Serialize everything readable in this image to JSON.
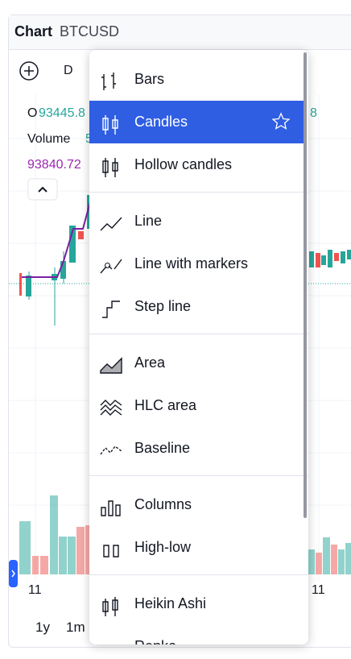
{
  "header": {
    "title": "Chart",
    "symbol": "BTCUSD"
  },
  "toolbar": {
    "interval": "D"
  },
  "legend": {
    "open_label": "O",
    "open_value": "93445.8",
    "right_value": "8",
    "volume_label": "Volume",
    "volume_value": "5",
    "price": "93840.72"
  },
  "axis": {
    "dates": [
      "11",
      "11"
    ]
  },
  "range_bar": [
    "1y",
    "1m"
  ],
  "menu": {
    "groups": [
      [
        "Bars",
        "Candles",
        "Hollow candles"
      ],
      [
        "Line",
        "Line with markers",
        "Step line"
      ],
      [
        "Area",
        "HLC area",
        "Baseline"
      ],
      [
        "Columns",
        "High-low"
      ],
      [
        "Heikin Ashi",
        "Renko"
      ]
    ]
  }
}
